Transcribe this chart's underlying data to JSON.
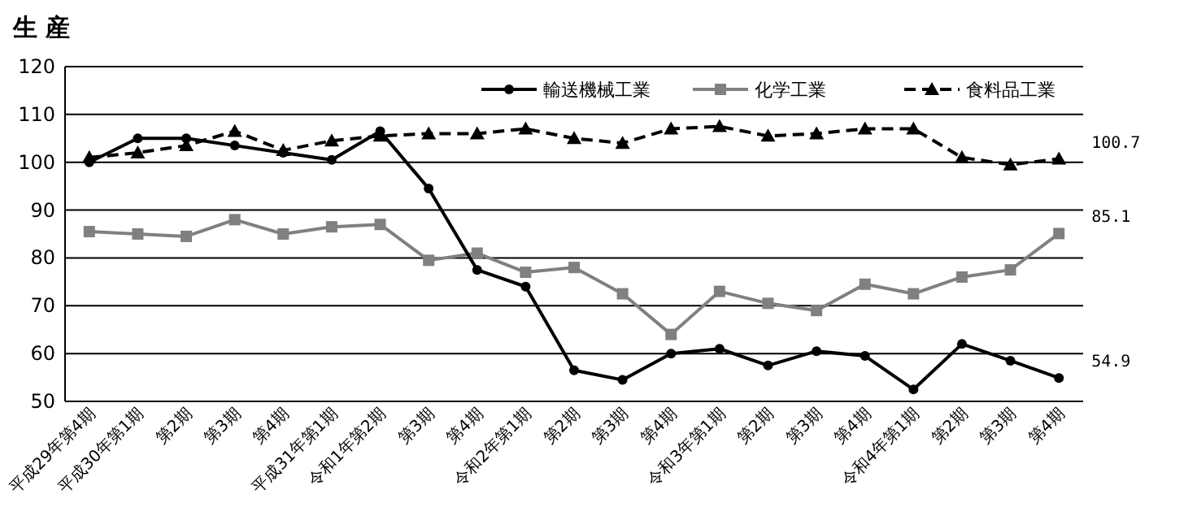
{
  "chart_data": {
    "type": "line",
    "title": "生 産",
    "categories": [
      "平成29年第4期",
      "平成30年第1期",
      "第2期",
      "第3期",
      "第4期",
      "平成31年第1期",
      "令和1年第2期",
      "第3期",
      "第4期",
      "令和2年第1期",
      "第2期",
      "第3期",
      "第4期",
      "令和3年第1期",
      "第2期",
      "第3期",
      "第4期",
      "令和4年第1期",
      "第2期",
      "第3期",
      "第4期"
    ],
    "series": [
      {
        "name": "輸送機械工業",
        "color": "#000000",
        "marker": "circle",
        "line_style": "solid",
        "values": [
          100,
          105,
          105,
          103.5,
          102,
          100.5,
          106.5,
          94.5,
          77.5,
          74,
          56.5,
          54.5,
          60,
          61,
          57.5,
          60.5,
          59.5,
          52.5,
          62,
          58.5,
          54.9
        ],
        "value_labels": [
          null,
          null,
          null,
          null,
          null,
          null,
          null,
          null,
          null,
          null,
          null,
          null,
          null,
          null,
          null,
          null,
          null,
          null,
          null,
          null,
          "54.9"
        ]
      },
      {
        "name": "化学工業",
        "color": "#808080",
        "marker": "square",
        "line_style": "solid",
        "values": [
          85.5,
          85,
          84.5,
          88,
          85,
          86.5,
          87,
          79.5,
          81,
          77,
          78,
          72.5,
          64,
          73,
          70.5,
          69,
          74.5,
          72.5,
          76,
          77.5,
          85.1
        ],
        "value_labels": [
          null,
          null,
          null,
          null,
          null,
          null,
          null,
          null,
          null,
          null,
          null,
          null,
          null,
          null,
          null,
          null,
          null,
          null,
          null,
          null,
          "85.1"
        ]
      },
      {
        "name": "食料品工業",
        "color": "#000000",
        "marker": "triangle",
        "line_style": "dashed",
        "values": [
          101,
          102,
          103.5,
          106.5,
          102.5,
          104.5,
          105.5,
          106,
          106,
          107,
          105,
          104,
          107,
          107.5,
          105.5,
          106,
          107,
          107,
          101,
          99.5,
          100.7
        ],
        "value_labels": [
          null,
          null,
          null,
          null,
          null,
          null,
          null,
          null,
          null,
          null,
          null,
          null,
          null,
          null,
          null,
          null,
          null,
          null,
          null,
          null,
          "100.7"
        ]
      }
    ],
    "ylim": [
      50,
      120
    ],
    "yticks": [
      50,
      60,
      70,
      80,
      90,
      100,
      110,
      120
    ],
    "grid": "y",
    "legend": "top right"
  }
}
